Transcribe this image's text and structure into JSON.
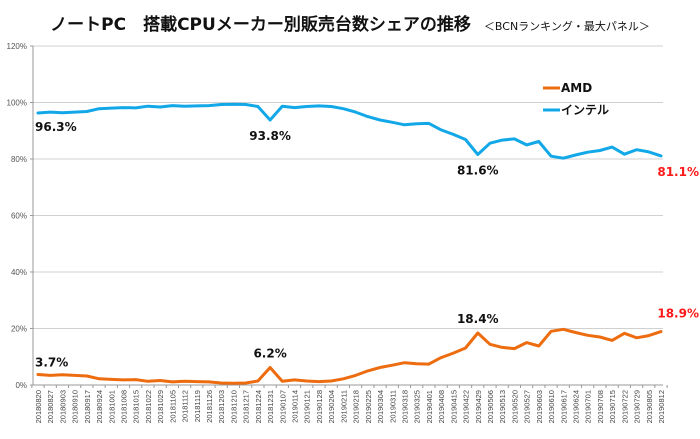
{
  "chart_data": {
    "type": "line",
    "title": "ノートPC　搭載CPUメーカー別販売台数シェアの推移",
    "subtitle": "＜BCNランキング・最大パネル＞",
    "xlabel": "",
    "ylabel": "",
    "ylim": [
      0,
      120
    ],
    "yticks": [
      "0%",
      "20%",
      "40%",
      "60%",
      "80%",
      "100%",
      "120%"
    ],
    "ytick_values": [
      0,
      20,
      40,
      60,
      80,
      100,
      120
    ],
    "grid": true,
    "legend_position": "top-right",
    "x": [
      "20180820",
      "20180827",
      "20180903",
      "20180910",
      "20180917",
      "20180924",
      "20181001",
      "20181008",
      "20181015",
      "20181022",
      "20181029",
      "20181105",
      "20181112",
      "20181119",
      "20181126",
      "20181203",
      "20181210",
      "20181217",
      "20181224",
      "20181231",
      "20190107",
      "20190114",
      "20190121",
      "20190128",
      "20190204",
      "20190211",
      "20190218",
      "20190225",
      "20190304",
      "20190311",
      "20190318",
      "20190325",
      "20190401",
      "20190408",
      "20190415",
      "20190422",
      "20190429",
      "20190506",
      "20190513",
      "20190520",
      "20190527",
      "20190603",
      "20190610",
      "20190617",
      "20190624",
      "20190701",
      "20190708",
      "20190715",
      "20190722",
      "20190729",
      "20190805",
      "20190812"
    ],
    "series": [
      {
        "name": "AMD",
        "color": "#ed6c0f",
        "values": [
          3.7,
          3.4,
          3.6,
          3.4,
          3.2,
          2.2,
          2.0,
          1.8,
          1.9,
          1.3,
          1.6,
          1.1,
          1.3,
          1.2,
          1.1,
          0.7,
          0.6,
          0.7,
          1.4,
          6.2,
          1.3,
          1.8,
          1.4,
          1.2,
          1.4,
          2.2,
          3.4,
          5.0,
          6.2,
          7.0,
          7.9,
          7.5,
          7.4,
          9.7,
          11.3,
          13.1,
          18.4,
          14.4,
          13.3,
          12.9,
          15.0,
          13.8,
          19.0,
          19.7,
          18.6,
          17.6,
          17.0,
          15.8,
          18.3,
          16.7,
          17.5,
          18.9
        ]
      },
      {
        "name": "インテル",
        "color": "#12a8e8",
        "values": [
          96.3,
          96.6,
          96.4,
          96.6,
          96.8,
          97.8,
          98.0,
          98.2,
          98.1,
          98.7,
          98.4,
          98.9,
          98.7,
          98.8,
          98.9,
          99.3,
          99.4,
          99.3,
          98.6,
          93.8,
          98.7,
          98.2,
          98.6,
          98.8,
          98.6,
          97.8,
          96.6,
          95.0,
          93.8,
          93.0,
          92.1,
          92.5,
          92.6,
          90.3,
          88.7,
          86.9,
          81.6,
          85.6,
          86.7,
          87.1,
          85.0,
          86.2,
          81.0,
          80.3,
          81.4,
          82.4,
          83.0,
          84.2,
          81.7,
          83.3,
          82.5,
          81.1
        ]
      }
    ],
    "annotations": [
      {
        "series": 1,
        "index": 0,
        "text": "96.3%",
        "color": "#111111"
      },
      {
        "series": 1,
        "index": 19,
        "text": "93.8%",
        "color": "#111111"
      },
      {
        "series": 1,
        "index": 36,
        "text": "81.6%",
        "color": "#111111"
      },
      {
        "series": 1,
        "index": 51,
        "text": "81.1%",
        "color": "#ff1a1a"
      },
      {
        "series": 0,
        "index": 0,
        "text": "3.7%",
        "color": "#111111"
      },
      {
        "series": 0,
        "index": 19,
        "text": "6.2%",
        "color": "#111111"
      },
      {
        "series": 0,
        "index": 36,
        "text": "18.4%",
        "color": "#111111"
      },
      {
        "series": 0,
        "index": 51,
        "text": "18.9%",
        "color": "#ff1a1a"
      }
    ]
  }
}
